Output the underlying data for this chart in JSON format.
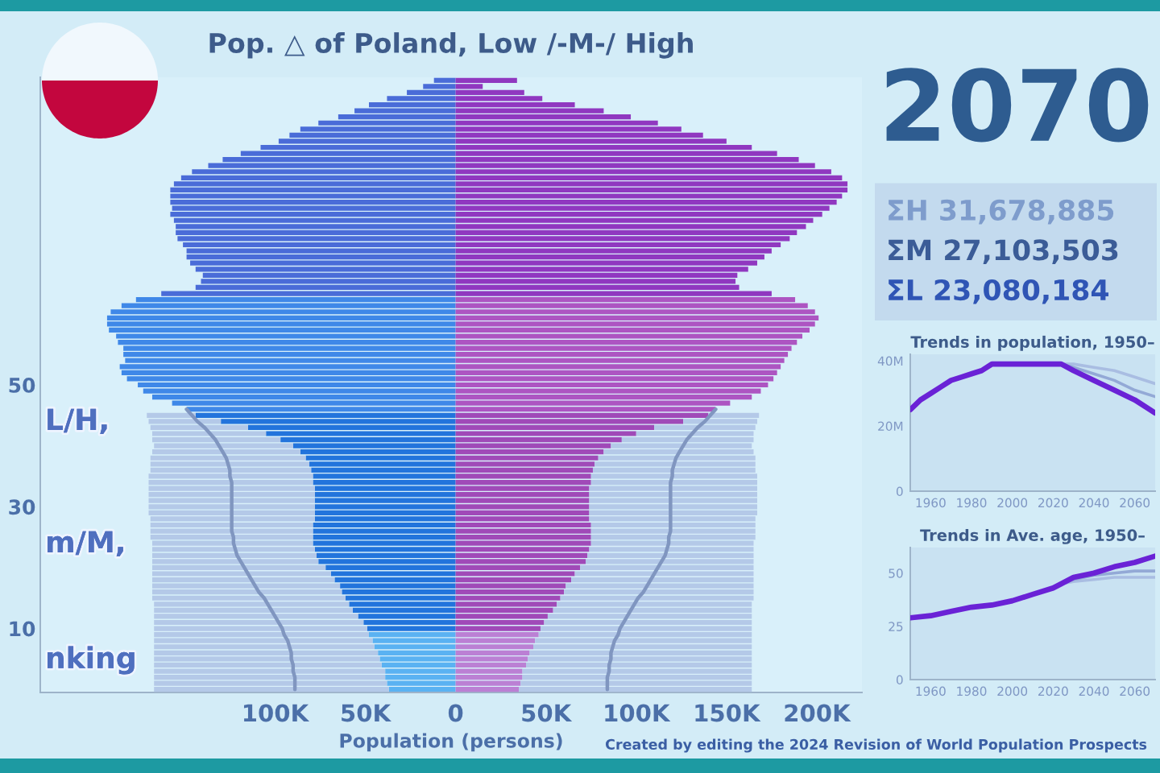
{
  "chart_data": [
    {
      "type": "bar",
      "orientation": "horizontal",
      "stacked": true,
      "title": "Pop. △ of Poland, Low /-M-/ High",
      "xlabel": "Population (persons)",
      "annotations": [
        "L/H,",
        "m/M,",
        "nking"
      ],
      "categories": [
        null,
        null,
        null,
        null,
        null,
        null,
        null,
        null,
        null,
        null,
        null,
        null,
        null,
        null,
        null,
        null,
        null,
        null,
        null,
        null,
        null,
        null,
        null,
        null,
        null,
        null,
        null,
        null,
        null,
        null,
        null,
        null,
        null,
        null,
        null,
        null,
        null,
        null,
        null,
        null,
        null,
        null,
        null,
        null,
        null,
        null,
        null,
        null,
        null,
        null,
        "50",
        null,
        null,
        null,
        null,
        null,
        null,
        null,
        null,
        null,
        null,
        null,
        null,
        null,
        null,
        null,
        null,
        null,
        null,
        null,
        "30",
        null,
        null,
        null,
        null,
        null,
        null,
        null,
        null,
        null,
        null,
        null,
        null,
        null,
        null,
        null,
        null,
        null,
        null,
        null,
        "10",
        null,
        null,
        null,
        null,
        null,
        null,
        null,
        null,
        null,
        null
      ],
      "xlim": [
        -230000,
        225000
      ],
      "xticks": [
        {
          "value": -100000,
          "label": "100K"
        },
        {
          "value": -50000,
          "label": "50K"
        },
        0,
        {
          "value": 50000,
          "label": "50K"
        },
        {
          "value": 100000,
          "label": "100K"
        },
        {
          "value": 150000,
          "label": "150K"
        },
        {
          "value": 200000,
          "label": "200K"
        }
      ],
      "series": [
        {
          "type": "bar",
          "colors": [
            "#4a6cd8",
            "#4a6cd8",
            "#4a6cd8",
            "#4a6cd8",
            "#4a6cd8",
            "#4a6cd8",
            "#4a6cd8",
            "#4a6cd8",
            "#4a6cd8",
            "#4a6cd8",
            "#4a6cd8",
            "#4a6cd8",
            "#4a6cd8",
            "#4a6cd8",
            "#4a6cd8",
            "#4a6cd8",
            "#4a6cd8",
            "#4a6cd8",
            "#4a6cd8",
            "#4a6cd8",
            "#4a6cd8",
            "#4a6cd8",
            "#4a6cd8",
            "#4a6cd8",
            "#4a6cd8",
            "#4a6cd8",
            "#4a6cd8",
            "#4a6cd8",
            "#4a6cd8",
            "#4a6cd8",
            "#4a6cd8",
            "#4a6cd8",
            "#4a6cd8",
            "#4a6cd8",
            "#4a6cd8",
            "#4a6cd8",
            "#3f88e8",
            "#3f88e8",
            "#3f88e8",
            "#3f88e8",
            "#3f88e8",
            "#3f88e8",
            "#3f88e8",
            "#3f88e8",
            "#3f88e8",
            "#3f88e8",
            "#3f88e8",
            "#3f88e8",
            "#3f88e8",
            "#3f88e8",
            "#3f88e8",
            "#3f88e8",
            "#3f88e8",
            "#3f88e8",
            "#3f88e8",
            "#2274dc",
            "#2274dc",
            "#2274dc",
            "#2274dc",
            "#2274dc",
            "#2274dc",
            "#2274dc",
            "#2274dc",
            "#2274dc",
            "#2274dc",
            "#2274dc",
            "#2274dc",
            "#2274dc",
            "#2274dc",
            "#2274dc",
            "#2274dc",
            "#2274dc",
            "#2274dc",
            "#2274dc",
            "#2274dc",
            "#2274dc",
            "#2274dc",
            "#2274dc",
            "#2274dc",
            "#2274dc",
            "#2274dc",
            "#2274dc",
            "#2274dc",
            "#2274dc",
            "#2274dc",
            "#2274dc",
            "#2274dc",
            "#2274dc",
            "#2274dc",
            "#2274dc",
            "#2274dc",
            "#5ab2f2",
            "#5ab2f2",
            "#5ab2f2",
            "#5ab2f2",
            "#5ab2f2",
            "#5ab2f2",
            "#5ab2f2",
            "#5ab2f2",
            "#5ab2f2",
            "#5ab2f2"
          ],
          "values": [
            -12000,
            -18000,
            -27000,
            -38000,
            -48000,
            -56000,
            -65000,
            -76000,
            -86000,
            -92000,
            -98000,
            -108000,
            -119000,
            -129000,
            -137000,
            -146000,
            -152000,
            -156000,
            -158000,
            -158000,
            -158000,
            -157000,
            -158000,
            -156000,
            -155000,
            -155000,
            -154000,
            -151000,
            -149000,
            -149000,
            -147000,
            -144000,
            -140000,
            -141000,
            -144000,
            -163000,
            -177000,
            -185000,
            -191000,
            -193000,
            -193000,
            -192000,
            -188000,
            -187000,
            -184000,
            -184000,
            -183000,
            -186000,
            -185000,
            -182000,
            -176000,
            -173000,
            -168000,
            -157000,
            -149000,
            -144000,
            -130000,
            -115000,
            -105000,
            -97000,
            -90000,
            -86000,
            -83000,
            -81000,
            -80000,
            -79000,
            -79000,
            -78000,
            -78000,
            -78000,
            -78000,
            -78000,
            -78000,
            -79000,
            -79000,
            -79000,
            -79000,
            -78000,
            -77000,
            -76000,
            -72000,
            -69000,
            -67000,
            -64000,
            -63000,
            -61000,
            -59000,
            -57000,
            -54000,
            -51000,
            -49000,
            -48000,
            -46000,
            -45000,
            -43000,
            -42000,
            -41000,
            -39000,
            -39000,
            -38000,
            -37000
          ]
        },
        {
          "type": "bar",
          "colors": [
            "#9038c0",
            "#9038c0",
            "#9038c0",
            "#9038c0",
            "#9038c0",
            "#9038c0",
            "#9038c0",
            "#9038c0",
            "#9038c0",
            "#9038c0",
            "#9038c0",
            "#9038c0",
            "#9038c0",
            "#9038c0",
            "#9038c0",
            "#9038c0",
            "#9038c0",
            "#9038c0",
            "#9038c0",
            "#9038c0",
            "#9038c0",
            "#9038c0",
            "#9038c0",
            "#9038c0",
            "#9038c0",
            "#9038c0",
            "#9038c0",
            "#9038c0",
            "#9038c0",
            "#9038c0",
            "#9038c0",
            "#9038c0",
            "#9038c0",
            "#9038c0",
            "#9038c0",
            "#9038c0",
            "#ad55c2",
            "#ad55c2",
            "#ad55c2",
            "#ad55c2",
            "#ad55c2",
            "#ad55c2",
            "#ad55c2",
            "#ad55c2",
            "#ad55c2",
            "#ad55c2",
            "#ad55c2",
            "#ad55c2",
            "#ad55c2",
            "#ad55c2",
            "#ad55c2",
            "#ad55c2",
            "#ad55c2",
            "#ad55c2",
            "#ad55c2",
            "#a04ab8",
            "#a04ab8",
            "#a04ab8",
            "#a04ab8",
            "#a04ab8",
            "#a04ab8",
            "#a04ab8",
            "#a04ab8",
            "#a04ab8",
            "#a04ab8",
            "#a04ab8",
            "#a04ab8",
            "#a04ab8",
            "#a04ab8",
            "#a04ab8",
            "#a04ab8",
            "#a04ab8",
            "#a04ab8",
            "#a04ab8",
            "#a04ab8",
            "#a04ab8",
            "#a04ab8",
            "#a04ab8",
            "#a04ab8",
            "#a04ab8",
            "#a04ab8",
            "#a04ab8",
            "#a04ab8",
            "#a04ab8",
            "#a04ab8",
            "#a04ab8",
            "#a04ab8",
            "#a04ab8",
            "#a04ab8",
            "#a04ab8",
            "#a04ab8",
            "#bb80d4",
            "#bb80d4",
            "#bb80d4",
            "#bb80d4",
            "#bb80d4",
            "#bb80d4",
            "#bb80d4",
            "#bb80d4",
            "#bb80d4",
            "#bb80d4"
          ],
          "values": [
            34000,
            15000,
            38000,
            48000,
            66000,
            82000,
            97000,
            112000,
            125000,
            137000,
            150000,
            164000,
            178000,
            190000,
            199000,
            208000,
            214000,
            217000,
            217000,
            214000,
            211000,
            207000,
            203000,
            198000,
            194000,
            189000,
            185000,
            180000,
            175000,
            171000,
            167000,
            162000,
            156000,
            155000,
            157000,
            175000,
            188000,
            195000,
            199000,
            201000,
            199000,
            196000,
            192000,
            189000,
            186000,
            184000,
            182000,
            180000,
            178000,
            176000,
            173000,
            169000,
            164000,
            152000,
            144000,
            140000,
            126000,
            110000,
            100000,
            92000,
            86000,
            82000,
            79000,
            77000,
            76000,
            75000,
            75000,
            74000,
            74000,
            74000,
            74000,
            74000,
            74000,
            75000,
            75000,
            75000,
            75000,
            74000,
            73000,
            72000,
            69000,
            66000,
            64000,
            61000,
            60000,
            58000,
            56000,
            54000,
            51000,
            49000,
            47000,
            46000,
            44000,
            43000,
            41000,
            40000,
            39000,
            37000,
            37000,
            36000,
            35000
          ]
        },
        {
          "type": "bar",
          "color": "#b4c9e8",
          "values": [
            null,
            null,
            null,
            null,
            null,
            null,
            null,
            null,
            null,
            null,
            null,
            null,
            null,
            null,
            null,
            null,
            null,
            null,
            null,
            null,
            null,
            null,
            null,
            null,
            null,
            null,
            null,
            null,
            null,
            null,
            null,
            null,
            null,
            null,
            null,
            null,
            null,
            null,
            null,
            null,
            null,
            null,
            null,
            null,
            null,
            null,
            null,
            null,
            null,
            null,
            null,
            null,
            null,
            null,
            null,
            -27000,
            -40000,
            -54000,
            -63000,
            -71000,
            -77000,
            -82000,
            -86000,
            -88000,
            -89000,
            -91000,
            -91000,
            -92000,
            -92000,
            -92000,
            -92000,
            -92000,
            -91000,
            -90000,
            -90000,
            -90000,
            -89000,
            -90000,
            -91000,
            -92000,
            -96000,
            -99000,
            -101000,
            -104000,
            -105000,
            -107000,
            -108000,
            -110000,
            -113000,
            -116000,
            -118000,
            -119000,
            -121000,
            -122000,
            -124000,
            -125000,
            -126000,
            -128000,
            -128000,
            -129000,
            -130000
          ]
        },
        {
          "type": "bar",
          "color": "#b4c9e8",
          "values": [
            null,
            null,
            null,
            null,
            null,
            null,
            null,
            null,
            null,
            null,
            null,
            null,
            null,
            null,
            null,
            null,
            null,
            null,
            null,
            null,
            null,
            null,
            null,
            null,
            null,
            null,
            null,
            null,
            null,
            null,
            null,
            null,
            null,
            null,
            null,
            null,
            null,
            null,
            null,
            null,
            null,
            null,
            null,
            null,
            null,
            null,
            null,
            null,
            null,
            null,
            null,
            null,
            null,
            null,
            null,
            28000,
            41000,
            56000,
            65000,
            73000,
            78000,
            83000,
            87000,
            89000,
            90000,
            92000,
            92000,
            93000,
            93000,
            93000,
            93000,
            93000,
            92000,
            91000,
            91000,
            91000,
            90000,
            91000,
            92000,
            93000,
            96000,
            99000,
            101000,
            104000,
            105000,
            107000,
            108000,
            110000,
            113000,
            115000,
            117000,
            118000,
            120000,
            121000,
            123000,
            124000,
            125000,
            127000,
            127000,
            128000,
            129000
          ]
        },
        {
          "type": "line",
          "color": "#8096c0",
          "values": [
            null,
            null,
            null,
            null,
            null,
            null,
            null,
            null,
            null,
            null,
            null,
            null,
            null,
            null,
            null,
            null,
            null,
            null,
            null,
            null,
            null,
            null,
            null,
            null,
            null,
            null,
            null,
            null,
            null,
            null,
            null,
            null,
            null,
            null,
            null,
            null,
            null,
            null,
            null,
            null,
            null,
            null,
            null,
            null,
            null,
            null,
            null,
            null,
            null,
            null,
            null,
            null,
            null,
            null,
            -149000,
            -146000,
            -143000,
            -139000,
            -136000,
            -133000,
            -131000,
            -129000,
            -127000,
            -126000,
            -125000,
            -125000,
            -124000,
            -124000,
            -124000,
            -124000,
            -124000,
            -124000,
            -124000,
            -124000,
            -124000,
            -123000,
            -123000,
            -122000,
            -121000,
            -119000,
            -117000,
            -115000,
            -113000,
            -111000,
            -109000,
            -106000,
            -104000,
            -102000,
            -100000,
            -98000,
            -96000,
            -95000,
            -93000,
            -92000,
            -91000,
            -91000,
            -90000,
            -90000,
            -89000,
            -89000,
            -89000
          ]
        },
        {
          "type": "line",
          "color": "#8096c0",
          "values": [
            null,
            null,
            null,
            null,
            null,
            null,
            null,
            null,
            null,
            null,
            null,
            null,
            null,
            null,
            null,
            null,
            null,
            null,
            null,
            null,
            null,
            null,
            null,
            null,
            null,
            null,
            null,
            null,
            null,
            null,
            null,
            null,
            null,
            null,
            null,
            null,
            null,
            null,
            null,
            null,
            null,
            null,
            null,
            null,
            null,
            null,
            null,
            null,
            null,
            null,
            null,
            null,
            null,
            null,
            144000,
            141000,
            138000,
            134000,
            131000,
            128000,
            126000,
            124000,
            122000,
            121000,
            120000,
            120000,
            119000,
            119000,
            119000,
            119000,
            119000,
            119000,
            119000,
            119000,
            119000,
            118000,
            118000,
            117000,
            116000,
            114000,
            112000,
            110000,
            108000,
            106000,
            104000,
            101000,
            99000,
            97000,
            95000,
            93000,
            91000,
            90000,
            88000,
            87000,
            86000,
            86000,
            85000,
            85000,
            84000,
            84000,
            84000
          ]
        }
      ]
    },
    {
      "type": "other",
      "title": "2070",
      "annotations": [
        "ΣH 31,678,885",
        "ΣM 27,103,503",
        "ΣL 23,080,184"
      ]
    },
    {
      "type": "line",
      "title": "Trends in population, 1950–",
      "xlim": [
        1950,
        2070
      ],
      "xticks": [
        1960,
        1980,
        2000,
        2020,
        2040,
        2060
      ],
      "ylim": [
        0,
        42
      ],
      "yticks": [
        0,
        {
          "value": 20,
          "label": "20M"
        },
        {
          "value": 40,
          "label": "40M"
        }
      ],
      "series": [
        {
          "color": "#a9bde2",
          "x": [
            2024,
            2030,
            2040,
            2050,
            2060,
            2070
          ],
          "values": [
            39,
            39,
            38,
            37,
            35,
            33
          ]
        },
        {
          "color": "#93a9d6",
          "x": [
            2024,
            2030,
            2040,
            2050,
            2060,
            2070
          ],
          "values": [
            39,
            38,
            36,
            34,
            31,
            29
          ]
        },
        {
          "color": "#6a22d6",
          "x": [
            1950,
            1955,
            1960,
            1965,
            1970,
            1975,
            1980,
            1985,
            1990,
            2000,
            2010,
            2020,
            2024,
            2030,
            2040,
            2050,
            2060,
            2070
          ],
          "values": [
            25,
            28,
            30,
            32,
            34,
            35,
            36,
            37,
            39,
            39,
            39,
            39,
            39,
            37,
            34,
            31,
            28,
            24
          ]
        }
      ]
    },
    {
      "type": "line",
      "title": "Trends in Ave. age, 1950–",
      "xlim": [
        1950,
        2070
      ],
      "xticks": [
        1960,
        1980,
        2000,
        2020,
        2040,
        2060
      ],
      "ylim": [
        0,
        62
      ],
      "yticks": [
        0,
        25,
        50
      ],
      "annotations": [
        "Created by editing the 2024 Revision of World Population Prospects"
      ],
      "series": [
        {
          "color": "#a9bde2",
          "x": [
            2024,
            2030,
            2040,
            2050,
            2060,
            2070
          ],
          "values": [
            45,
            46,
            47,
            48,
            48,
            48
          ]
        },
        {
          "color": "#93a9d6",
          "x": [
            2024,
            2030,
            2040,
            2050,
            2060,
            2070
          ],
          "values": [
            45,
            47,
            49,
            50,
            51,
            51
          ]
        },
        {
          "color": "#6a22d6",
          "x": [
            1950,
            1960,
            1970,
            1980,
            1990,
            2000,
            2010,
            2020,
            2024,
            2030,
            2040,
            2050,
            2060,
            2070
          ],
          "values": [
            29,
            30,
            32,
            34,
            35,
            37,
            40,
            43,
            45,
            48,
            50,
            53,
            55,
            58
          ]
        }
      ]
    }
  ]
}
